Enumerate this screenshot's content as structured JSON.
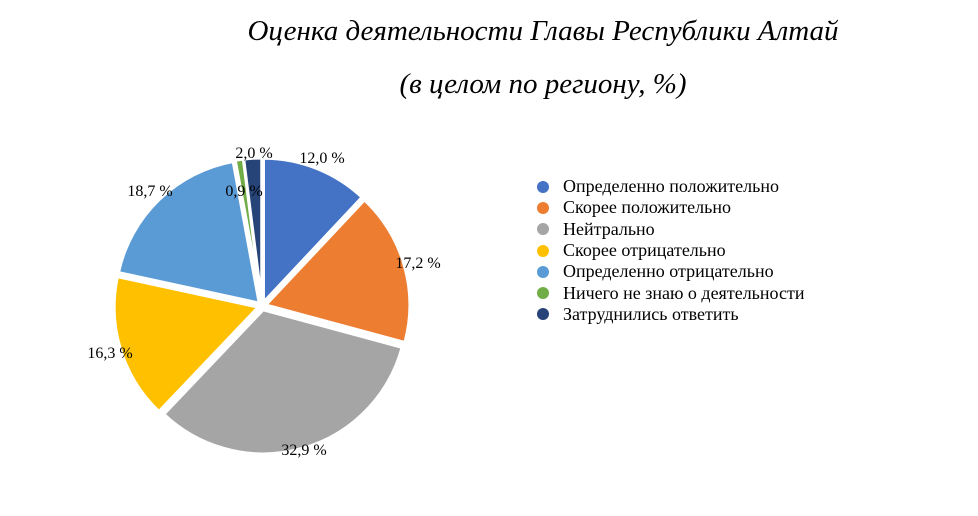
{
  "chart_data": {
    "type": "pie",
    "title": "Оценка деятельности Главы Республики Алтай",
    "subtitle": "(в целом по региону, %)",
    "slices": [
      {
        "label": "Определенно положительно",
        "value": 12.0,
        "display": "12,0 %",
        "color": "#4472C4"
      },
      {
        "label": "Скорее положительно",
        "value": 17.2,
        "display": "17,2 %",
        "color": "#ED7D31"
      },
      {
        "label": "Нейтрально",
        "value": 32.9,
        "display": "32,9 %",
        "color": "#A5A5A5"
      },
      {
        "label": "Скорее отрицательно",
        "value": 16.3,
        "display": "16,3 %",
        "color": "#FFC000"
      },
      {
        "label": "Определенно отрицательно",
        "value": 18.7,
        "display": "18,7 %",
        "color": "#5B9BD5"
      },
      {
        "label": "Ничего не знаю о деятельности",
        "value": 0.9,
        "display": "0,9 %",
        "color": "#70AD47"
      },
      {
        "label": "Затруднились ответить",
        "value": 2.0,
        "display": "2,0 %",
        "color": "#264478"
      }
    ],
    "legend_position": "right"
  }
}
